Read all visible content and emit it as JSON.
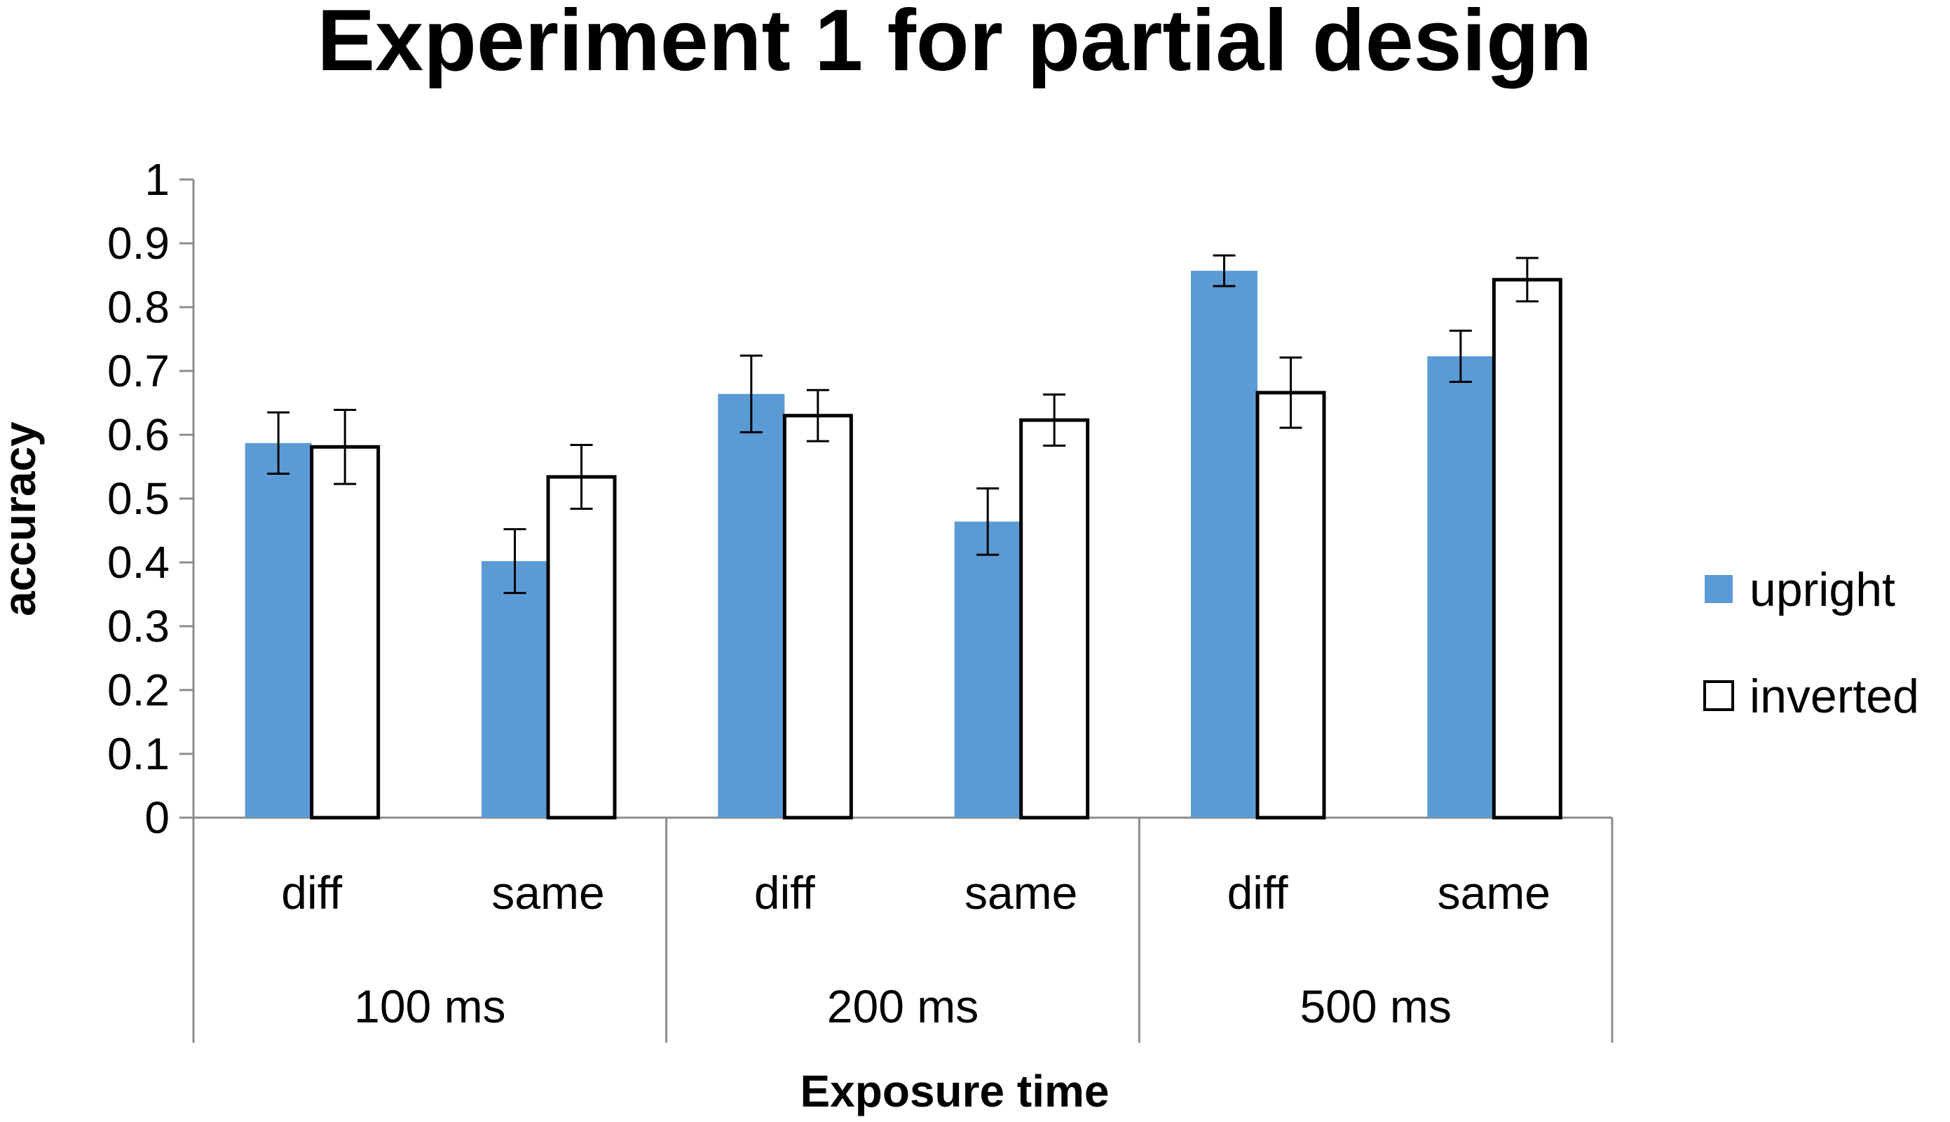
{
  "chart_data": {
    "type": "bar",
    "title": "Experiment 1 for partial design",
    "xlabel": "Exposure time",
    "ylabel": "accuracy",
    "ylim": [
      0,
      1
    ],
    "yticks": [
      "0",
      "0.1",
      "0.2",
      "0.3",
      "0.4",
      "0.5",
      "0.6",
      "0.7",
      "0.8",
      "0.9",
      "1"
    ],
    "categories": [
      "diff",
      "same",
      "diff",
      "same",
      "diff",
      "same"
    ],
    "groups": [
      "100 ms",
      "200 ms",
      "500 ms"
    ],
    "series": [
      {
        "name": "upright",
        "color": "#5B9BD5",
        "values": [
          0.587,
          0.402,
          0.664,
          0.464,
          0.857,
          0.723
        ],
        "errors": [
          0.048,
          0.05,
          0.06,
          0.052,
          0.024,
          0.04
        ]
      },
      {
        "name": "inverted",
        "color": "#FFFFFF",
        "values": [
          0.581,
          0.534,
          0.63,
          0.623,
          0.666,
          0.843
        ],
        "errors": [
          0.058,
          0.05,
          0.04,
          0.04,
          0.055,
          0.034
        ]
      }
    ],
    "legend_position": "right"
  }
}
